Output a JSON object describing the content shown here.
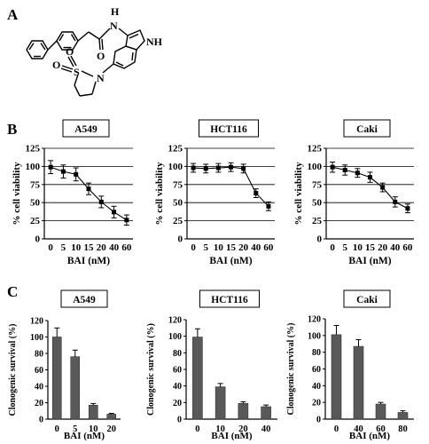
{
  "figure": {
    "panel_labels": [
      "A",
      "B",
      "C"
    ],
    "structure_labels": {
      "nh_h": "H",
      "nh_n": "N",
      "ring_nh": "NH",
      "sulfonyl_s": "S",
      "sulfonyl_o1": "O",
      "sulfonyl_o2": "O",
      "carbonyl_o": "O",
      "sultam_n": "N"
    },
    "colors": {
      "bar_fill": "#595959",
      "line": "#000000",
      "grid": "#000000",
      "axis": "#000000"
    }
  },
  "chart_data": [
    {
      "panel": "B",
      "type": "line",
      "title": "A549",
      "xlabel": "BAI (nM)",
      "ylabel": "% cell viability",
      "categories": [
        "0",
        "5",
        "10",
        "15",
        "20",
        "40",
        "60"
      ],
      "series": [
        {
          "values": [
            99,
            93,
            89,
            69,
            51,
            37,
            26
          ],
          "errors": [
            9,
            9,
            9,
            8,
            8,
            8,
            7
          ]
        }
      ],
      "ylim": [
        0,
        125
      ],
      "yticks": [
        0,
        25,
        50,
        75,
        100,
        125
      ],
      "grid": true
    },
    {
      "panel": "B",
      "type": "line",
      "title": "HCT116",
      "xlabel": "BAI (nM)",
      "ylabel": "% cell viability",
      "categories": [
        "0",
        "5",
        "10",
        "15",
        "20",
        "40",
        "60"
      ],
      "series": [
        {
          "values": [
            98,
            97,
            98,
            99,
            97,
            63,
            45
          ],
          "errors": [
            6,
            6,
            6,
            6,
            6,
            6,
            6
          ]
        }
      ],
      "ylim": [
        0,
        125
      ],
      "yticks": [
        0,
        25,
        50,
        75,
        100,
        125
      ],
      "grid": true
    },
    {
      "panel": "B",
      "type": "line",
      "title": "Caki",
      "xlabel": "BAI (nM)",
      "ylabel": "% cell viability",
      "categories": [
        "0",
        "5",
        "10",
        "15",
        "20",
        "40",
        "60"
      ],
      "series": [
        {
          "values": [
            99,
            95,
            91,
            85,
            71,
            51,
            42
          ],
          "errors": [
            7,
            7,
            6,
            7,
            6,
            7,
            6
          ]
        }
      ],
      "ylim": [
        0,
        125
      ],
      "yticks": [
        0,
        25,
        50,
        75,
        100,
        125
      ],
      "grid": true
    },
    {
      "panel": "C",
      "type": "bar",
      "title": "A549",
      "xlabel": "BAI (nM)",
      "ylabel": "Clonogenic survival (%)",
      "categories": [
        "0",
        "5",
        "10",
        "20"
      ],
      "series": [
        {
          "values": [
            100,
            76,
            17,
            6
          ],
          "errors": [
            11,
            8,
            2,
            1
          ]
        }
      ],
      "ylim": [
        0,
        120
      ],
      "yticks": [
        0,
        20,
        40,
        60,
        80,
        100,
        120
      ],
      "grid": false
    },
    {
      "panel": "C",
      "type": "bar",
      "title": "HCT116",
      "xlabel": "BAI (nM)",
      "ylabel": "Clonogenic survival (%)",
      "categories": [
        "0",
        "10",
        "20",
        "40"
      ],
      "series": [
        {
          "values": [
            99,
            39,
            19,
            15
          ],
          "errors": [
            10,
            4,
            2,
            2
          ]
        }
      ],
      "ylim": [
        0,
        120
      ],
      "yticks": [
        0,
        20,
        40,
        60,
        80,
        100,
        120
      ],
      "grid": false
    },
    {
      "panel": "C",
      "type": "bar",
      "title": "Caki",
      "xlabel": "BAI (nM)",
      "ylabel": "Clonogenic survival (%)",
      "categories": [
        "0",
        "40",
        "60",
        "80"
      ],
      "series": [
        {
          "values": [
            101,
            87,
            18,
            8
          ],
          "errors": [
            11,
            8,
            2,
            2
          ]
        }
      ],
      "ylim": [
        0,
        120
      ],
      "yticks": [
        0,
        20,
        40,
        60,
        80,
        100,
        120
      ],
      "grid": false
    }
  ]
}
